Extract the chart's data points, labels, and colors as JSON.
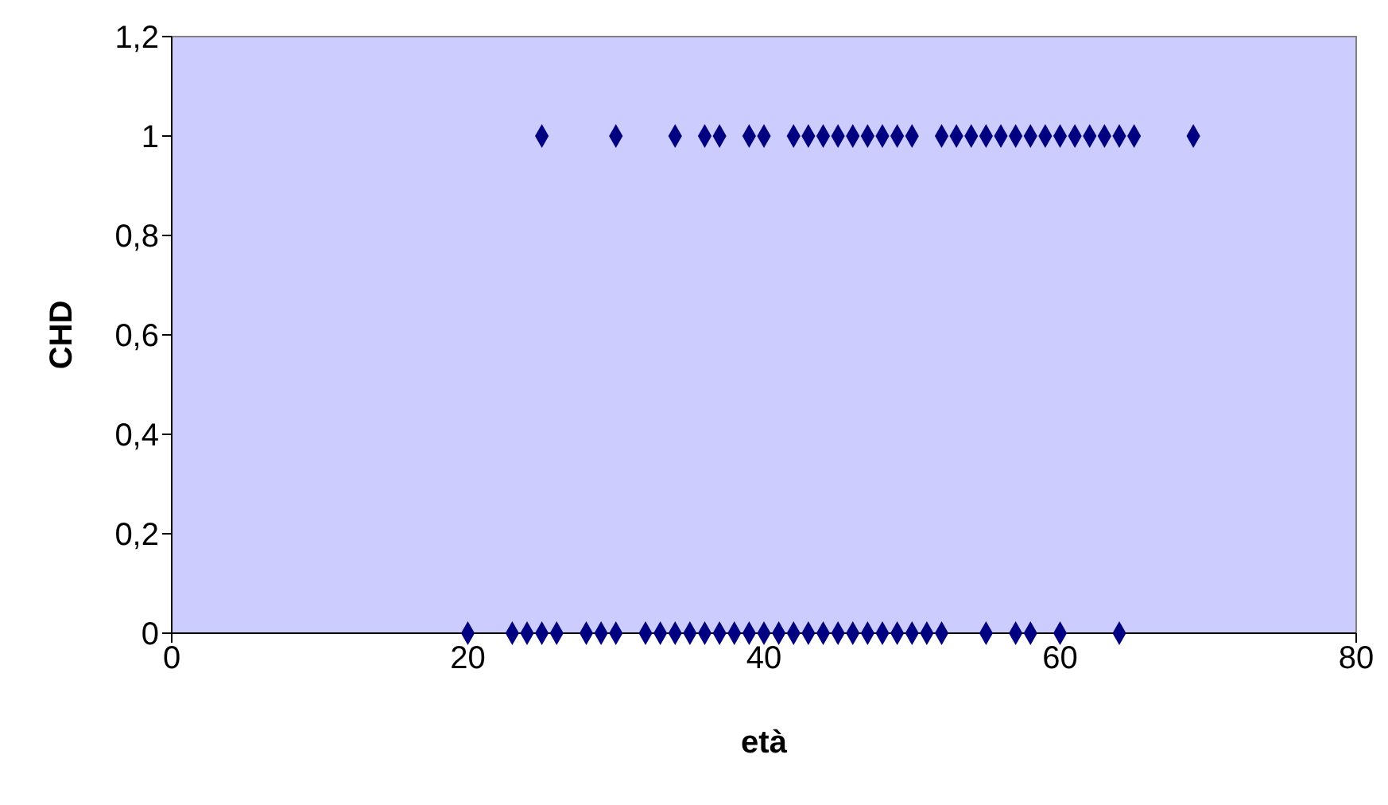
{
  "chart_data": {
    "type": "scatter",
    "xlabel": "età",
    "ylabel": "CHD",
    "marker": "diamond",
    "xlim": [
      0,
      80
    ],
    "xticks": [
      0,
      20,
      40,
      60,
      80
    ],
    "ylim": [
      0,
      1.2
    ],
    "yticks": [
      0,
      {
        "value": 0.2,
        "label": "0,2"
      },
      {
        "value": 0.4,
        "label": "0,4"
      },
      {
        "value": 0.6,
        "label": "0,6"
      },
      {
        "value": 0.8,
        "label": "0,8"
      },
      1,
      {
        "value": 1.2,
        "label": "1,2"
      }
    ],
    "series": [
      {
        "color": "#000080",
        "x": [
          25,
          30,
          34,
          36,
          37,
          39,
          40,
          42,
          43,
          44,
          45,
          46,
          47,
          48,
          49,
          50,
          52,
          53,
          54,
          55,
          56,
          57,
          58,
          59,
          60,
          61,
          62,
          63,
          64,
          65,
          69
        ],
        "values": [
          1,
          1,
          1,
          1,
          1,
          1,
          1,
          1,
          1,
          1,
          1,
          1,
          1,
          1,
          1,
          1,
          1,
          1,
          1,
          1,
          1,
          1,
          1,
          1,
          1,
          1,
          1,
          1,
          1,
          1,
          1
        ]
      },
      {
        "color": "#000080",
        "x": [
          20,
          23,
          24,
          25,
          26,
          28,
          29,
          30,
          32,
          33,
          34,
          35,
          36,
          37,
          38,
          39,
          40,
          41,
          42,
          43,
          44,
          45,
          46,
          47,
          48,
          49,
          50,
          51,
          52,
          55,
          57,
          58,
          60,
          64
        ],
        "values": [
          0,
          0,
          0,
          0,
          0,
          0,
          0,
          0,
          0,
          0,
          0,
          0,
          0,
          0,
          0,
          0,
          0,
          0,
          0,
          0,
          0,
          0,
          0,
          0,
          0,
          0,
          0,
          0,
          0,
          0,
          0,
          0,
          0,
          0
        ]
      }
    ]
  }
}
